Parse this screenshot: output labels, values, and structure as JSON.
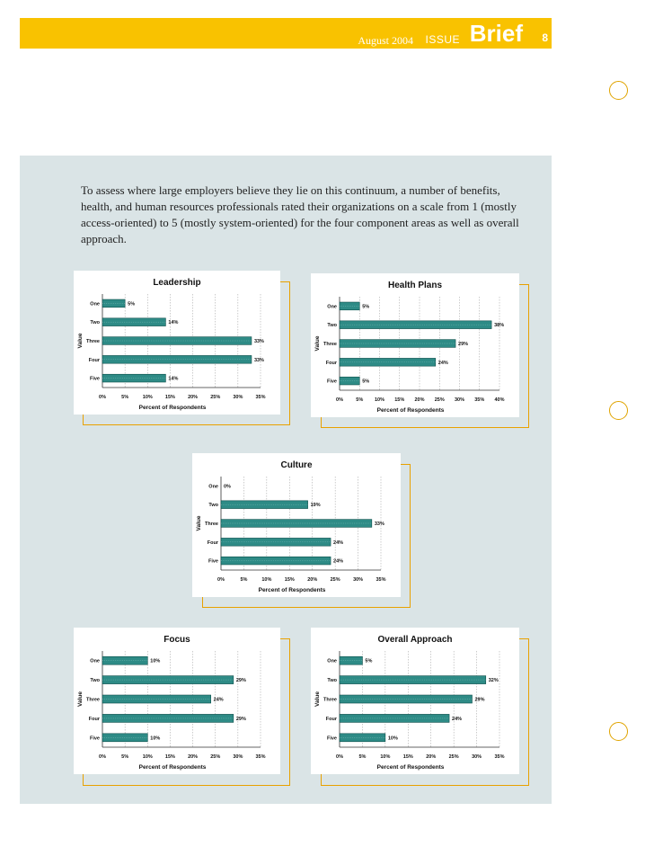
{
  "header": {
    "date": "August 2004",
    "issue_label": "ISSUE",
    "brief_label": "Brief",
    "page_number": "8",
    "accent_color": "#f9c200"
  },
  "intro_text": "To assess where large employers believe they lie on this continuum, a number of benefits, health, and human resources professionals rated their organizations on a scale from 1 (mostly access-oriented) to 5 (mostly system-oriented) for the four component areas as well as overall approach.",
  "chart_data": [
    {
      "type": "bar",
      "orientation": "horizontal",
      "title": "Leadership",
      "categories": [
        "One",
        "Two",
        "Three",
        "Four",
        "Five"
      ],
      "values": [
        5,
        14,
        33,
        33,
        14
      ],
      "value_labels": [
        "5%",
        "14%",
        "33%",
        "33%",
        "14%"
      ],
      "xlabel": "Percent of Respondents",
      "ylabel": "Value",
      "xlim": [
        0,
        35
      ],
      "ticks": [
        "0%",
        "5%",
        "10%",
        "15%",
        "20%",
        "25%",
        "30%",
        "35%"
      ],
      "bar_color": "#2e8b86"
    },
    {
      "type": "bar",
      "orientation": "horizontal",
      "title": "Health Plans",
      "categories": [
        "One",
        "Two",
        "Three",
        "Four",
        "Five"
      ],
      "values": [
        5,
        38,
        29,
        24,
        5
      ],
      "value_labels": [
        "5%",
        "38%",
        "29%",
        "24%",
        "5%"
      ],
      "xlabel": "Percent of Respondents",
      "ylabel": "Value",
      "xlim": [
        0,
        40
      ],
      "ticks": [
        "0%",
        "5%",
        "10%",
        "15%",
        "20%",
        "25%",
        "30%",
        "35%",
        "40%"
      ],
      "bar_color": "#2e8b86"
    },
    {
      "type": "bar",
      "orientation": "horizontal",
      "title": "Culture",
      "categories": [
        "One",
        "Two",
        "Three",
        "Four",
        "Five"
      ],
      "values": [
        0,
        19,
        33,
        24,
        24
      ],
      "value_labels": [
        "0%",
        "19%",
        "33%",
        "24%",
        "24%"
      ],
      "xlabel": "Percent of Respondents",
      "ylabel": "Value",
      "xlim": [
        0,
        35
      ],
      "ticks": [
        "0%",
        "5%",
        "10%",
        "15%",
        "20%",
        "25%",
        "30%",
        "35%"
      ],
      "bar_color": "#2e8b86"
    },
    {
      "type": "bar",
      "orientation": "horizontal",
      "title": "Focus",
      "categories": [
        "One",
        "Two",
        "Three",
        "Four",
        "Five"
      ],
      "values": [
        10,
        29,
        24,
        29,
        10
      ],
      "value_labels": [
        "10%",
        "29%",
        "24%",
        "29%",
        "10%"
      ],
      "xlabel": "Percent of Respondents",
      "ylabel": "Value",
      "xlim": [
        0,
        35
      ],
      "ticks": [
        "0%",
        "5%",
        "10%",
        "15%",
        "20%",
        "25%",
        "30%",
        "35%"
      ],
      "bar_color": "#2e8b86"
    },
    {
      "type": "bar",
      "orientation": "horizontal",
      "title": "Overall Approach",
      "categories": [
        "One",
        "Two",
        "Three",
        "Four",
        "Five"
      ],
      "values": [
        5,
        32,
        29,
        24,
        10
      ],
      "value_labels": [
        "5%",
        "32%",
        "29%",
        "24%",
        "10%"
      ],
      "xlabel": "Percent of Respondents",
      "ylabel": "Value",
      "xlim": [
        0,
        35
      ],
      "ticks": [
        "0%",
        "5%",
        "10%",
        "15%",
        "20%",
        "25%",
        "30%",
        "35%"
      ],
      "bar_color": "#2e8b86"
    }
  ]
}
